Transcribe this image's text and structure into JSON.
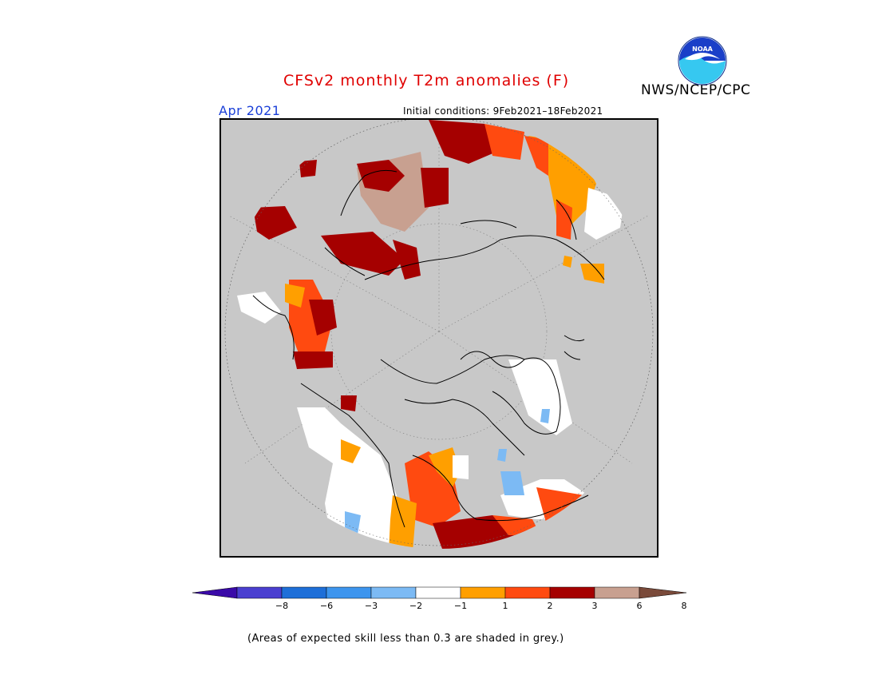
{
  "header": {
    "title": "CFSv2 monthly T2m anomalies (F)",
    "month_label": "Apr 2021",
    "initial_conditions": "Initial conditions: 9Feb2021–18Feb2021",
    "org": "NWS/NCEP/CPC",
    "logo_text": "NOAA"
  },
  "colorbar": {
    "ticks": [
      "−8",
      "−6",
      "−3",
      "−2",
      "−1",
      "1",
      "2",
      "3",
      "6",
      "8"
    ],
    "colors": [
      "#3a0aa8",
      "#4a3fd0",
      "#1e6fd8",
      "#3d95ee",
      "#7cbaf4",
      "#ffffff",
      "#ff9f00",
      "#ff4a10",
      "#a50000",
      "#c8a090",
      "#7a4a3a"
    ]
  },
  "footnote": "(Areas of expected skill less than 0.3 are shaded in grey.)",
  "colors": {
    "grey_mask": "#c8c8c8",
    "title_red": "#e00000",
    "month_blue": "#1a3fd8"
  }
}
